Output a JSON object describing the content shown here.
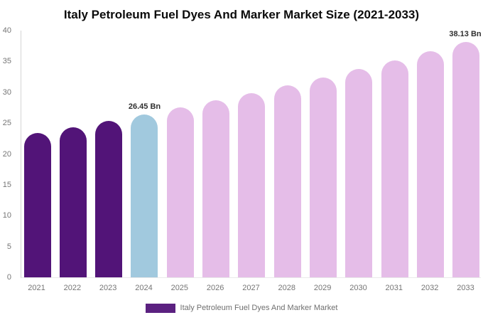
{
  "title": "Italy Petroleum Fuel Dyes And Marker Market Size (2021-2033)",
  "chart_data": {
    "type": "bar",
    "title": "Italy Petroleum Fuel Dyes And Marker Market Size (2021-2033)",
    "categories": [
      "2021",
      "2022",
      "2023",
      "2024",
      "2025",
      "2026",
      "2027",
      "2028",
      "2029",
      "2030",
      "2031",
      "2032",
      "2033"
    ],
    "values": [
      23.41,
      24.38,
      25.4,
      26.45,
      27.55,
      28.69,
      29.88,
      31.12,
      32.41,
      33.75,
      35.15,
      36.61,
      38.13
    ],
    "unit": "Bn",
    "xlabel": "",
    "ylabel": "",
    "ylim": [
      0,
      40
    ],
    "yticks": [
      0,
      5,
      10,
      15,
      20,
      25,
      30,
      35,
      40
    ],
    "grid": false,
    "bar_colors": [
      "#521478",
      "#521478",
      "#521478",
      "#A1C9DE",
      "#E5BDE8",
      "#E5BDE8",
      "#E5BDE8",
      "#E5BDE8",
      "#E5BDE8",
      "#E5BDE8",
      "#E5BDE8",
      "#E5BDE8",
      "#E5BDE8"
    ],
    "annotations": [
      {
        "category": "2024",
        "text": "26.45 Bn"
      },
      {
        "category": "2033",
        "text": "38.13 Bn"
      }
    ],
    "legend": {
      "label": "Italy Petroleum Fuel Dyes And Marker Market",
      "color": "#5B2180",
      "position": "bottom"
    }
  },
  "colors": {
    "background": "#FFFFFF",
    "historical_bar": "#521478",
    "current_year_bar": "#A1C9DE",
    "forecast_bar": "#E5BDE8",
    "axis_line": "#D4D4D4",
    "tick_text": "#757575",
    "title_text": "#0B0B0B",
    "annotation_text": "#2F2F2F",
    "legend_text": "#6F6F6F"
  }
}
